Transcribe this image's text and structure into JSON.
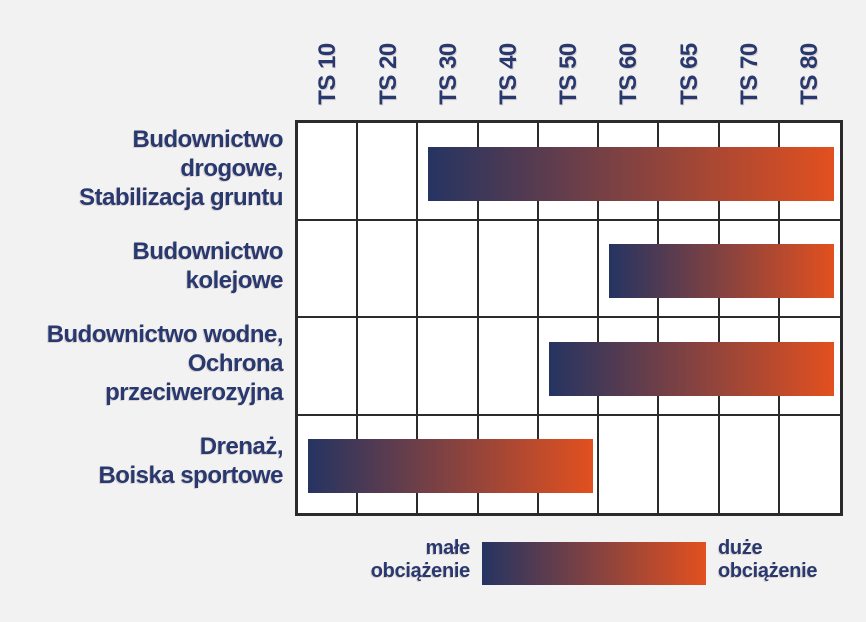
{
  "chart_data": {
    "type": "heatmap",
    "subtype": "category-range-matrix",
    "title": "",
    "columns": [
      "TS 10",
      "TS 20",
      "TS 30",
      "TS 40",
      "TS 50",
      "TS 60",
      "TS 65",
      "TS 70",
      "TS 80"
    ],
    "rows": [
      {
        "label": "Budownictwo\ndrogowe,\nStabilizacja gruntu",
        "from": "TS 30",
        "to": "TS 80",
        "from_index": 2,
        "to_index": 8
      },
      {
        "label": "Budownictwo\nkolejowe",
        "from": "TS 60",
        "to": "TS 80",
        "from_index": 5,
        "to_index": 8
      },
      {
        "label": "Budownictwo wodne,\nOchrona\nprzeciwerozyjna",
        "from": "TS 50",
        "to": "TS 80",
        "from_index": 4,
        "to_index": 8
      },
      {
        "label": "Drenaż,\nBoiska sportowe",
        "from": "TS 10",
        "to": "TS 50",
        "from_index": 0,
        "to_index": 4
      }
    ],
    "legend": {
      "left_label": "małe\nobciążenie",
      "right_label": "duże\nobciążenie"
    },
    "colors": {
      "bar_gradient_start": "#253462",
      "bar_gradient_end": "#e2501f",
      "text": "#27396e",
      "grid_line": "#2b2b2c",
      "cell_background": "#ffffff",
      "page_background": "#f2f2f3"
    },
    "layout_hints": {
      "columns_count": 9,
      "rows_count": 4,
      "grid": "on",
      "column_labels_rotated": true,
      "legend_position": "bottom"
    }
  }
}
